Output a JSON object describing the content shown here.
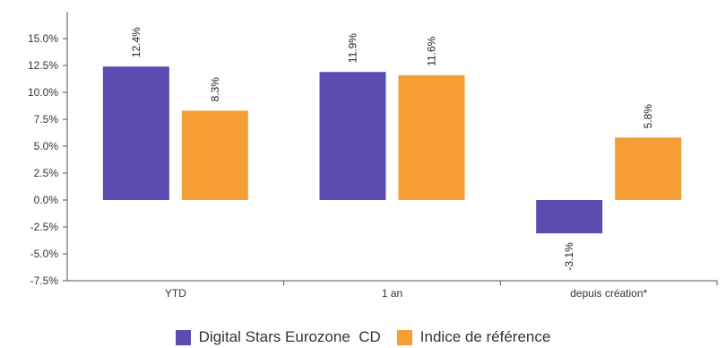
{
  "chart_data": {
    "type": "bar",
    "categories": [
      "YTD",
      "1 an",
      "depuis création*"
    ],
    "series": [
      {
        "name": "Digital Stars Eurozone  CD",
        "values": [
          12.4,
          11.9,
          -3.1
        ],
        "color": "#5b4db0"
      },
      {
        "name": "Indice de référence",
        "values": [
          8.3,
          11.6,
          5.8
        ],
        "color": "#f59e36"
      }
    ],
    "data_labels": [
      [
        "12.4%",
        "11.9%",
        "-3.1%"
      ],
      [
        "8.3%",
        "11.6%",
        "5.8%"
      ]
    ],
    "yticks": [
      -7.5,
      -5.0,
      -2.5,
      0.0,
      2.5,
      5.0,
      7.5,
      10.0,
      12.5,
      15.0
    ],
    "ytick_labels": [
      "-7.5%",
      "-5.0%",
      "-2.5%",
      "0.0%",
      "2.5%",
      "5.0%",
      "7.5%",
      "10.0%",
      "12.5%",
      "15.0%"
    ],
    "ylim": [
      -7.5,
      17.5
    ],
    "grid": false,
    "legend_position": "bottom"
  }
}
